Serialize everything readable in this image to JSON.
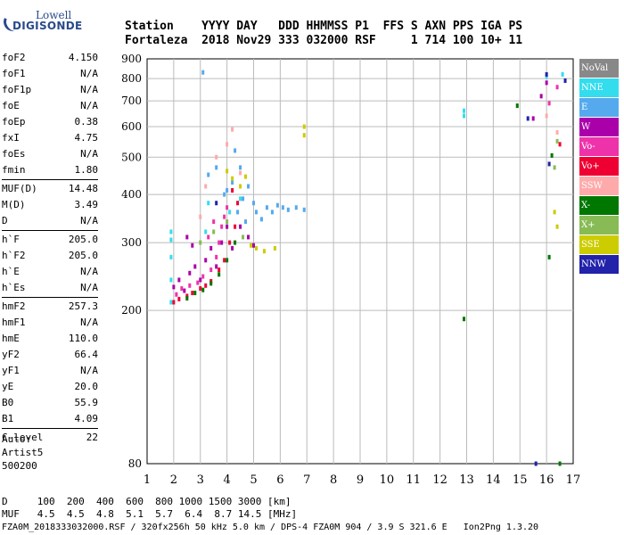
{
  "logo": {
    "line1": "Lowell",
    "line2": "DIGISONDE"
  },
  "header": {
    "line1": "Station    YYYY DAY   DDD HHMMSS P1  FFS S AXN PPS IGA PS",
    "line2": "Fortaleza  2018 Nov29 333 032000 RSF     1 714 100 10+ 11"
  },
  "params": [
    [
      {
        "k": "foF2",
        "v": "4.150"
      },
      {
        "k": "foF1",
        "v": "N/A"
      },
      {
        "k": "foF1p",
        "v": "N/A"
      },
      {
        "k": "foE",
        "v": "N/A"
      },
      {
        "k": "foEp",
        "v": "0.38"
      },
      {
        "k": "fxI",
        "v": "4.75"
      },
      {
        "k": "foEs",
        "v": "N/A"
      },
      {
        "k": "fmin",
        "v": "1.80"
      }
    ],
    [
      {
        "k": "MUF(D)",
        "v": "14.48"
      },
      {
        "k": "M(D)",
        "v": "3.49"
      },
      {
        "k": "D",
        "v": "N/A"
      }
    ],
    [
      {
        "k": "h`F",
        "v": "205.0"
      },
      {
        "k": "h`F2",
        "v": "205.0"
      },
      {
        "k": "h`E",
        "v": "N/A"
      },
      {
        "k": "h`Es",
        "v": "N/A"
      }
    ],
    [
      {
        "k": "hmF2",
        "v": "257.3"
      },
      {
        "k": "hmF1",
        "v": "N/A"
      },
      {
        "k": "hmE",
        "v": "110.0"
      },
      {
        "k": "yF2",
        "v": "66.4"
      },
      {
        "k": "yF1",
        "v": "N/A"
      },
      {
        "k": "yE",
        "v": "20.0"
      },
      {
        "k": "B0",
        "v": "55.9"
      },
      {
        "k": "B1",
        "v": "4.09"
      }
    ],
    [
      {
        "k": "C-level",
        "v": "22"
      }
    ]
  ],
  "auto_block": [
    "Auto:",
    "Artist5",
    "500200"
  ],
  "footer": {
    "d_row": "D     100  200  400  600  800 1000 1500 3000 [km]",
    "muf_row": "MUF   4.5  4.5  4.8  5.1  5.7  6.4  8.7 14.5 [MHz]",
    "file_row": "FZA0M_2018333032000.RSF / 320fx256h 50 kHz 5.0 km / DPS-4 FZA0M 904 / 3.9 S 321.6 E   Ion2Png 1.3.20"
  },
  "legend": [
    {
      "label": "NoVal",
      "color": "#888888"
    },
    {
      "label": "NNE",
      "color": "#33ddee"
    },
    {
      "label": "E",
      "color": "#55aaee"
    },
    {
      "label": "W",
      "color": "#aa00aa"
    },
    {
      "label": "Vo-",
      "color": "#ee33aa"
    },
    {
      "label": "Vo+",
      "color": "#ee0033"
    },
    {
      "label": "SSW",
      "color": "#ffaaaa"
    },
    {
      "label": "X-",
      "color": "#007700"
    },
    {
      "label": "X+",
      "color": "#88bb55"
    },
    {
      "label": "SSE",
      "color": "#cccc00"
    },
    {
      "label": "NNW",
      "color": "#2222aa"
    }
  ],
  "chart_data": {
    "type": "scatter",
    "xlim": [
      1,
      17
    ],
    "ylim": [
      80,
      900
    ],
    "y_scale": "log",
    "x_ticks": [
      "1",
      "2",
      "3",
      "4",
      "5",
      "6",
      "7",
      "8",
      "9",
      "10",
      "11",
      "12",
      "13",
      "14",
      "15",
      "16",
      "17"
    ],
    "y_ticks": [
      "80",
      "200",
      "300",
      "400",
      "500",
      "600",
      "700",
      "800",
      "900"
    ],
    "grid": true,
    "series": [
      {
        "name": "NNE",
        "color": "#33ddee",
        "points": [
          [
            1.9,
            210
          ],
          [
            1.9,
            240
          ],
          [
            1.9,
            275
          ],
          [
            1.9,
            305
          ],
          [
            1.9,
            320
          ],
          [
            3.2,
            320
          ],
          [
            3.3,
            380
          ],
          [
            4.1,
            360
          ],
          [
            4.5,
            390
          ],
          [
            12.9,
            640
          ],
          [
            12.9,
            660
          ],
          [
            16.0,
            810
          ],
          [
            16.6,
            820
          ]
        ]
      },
      {
        "name": "E",
        "color": "#55aaee",
        "points": [
          [
            3.3,
            450
          ],
          [
            3.6,
            470
          ],
          [
            4.0,
            410
          ],
          [
            4.2,
            430
          ],
          [
            4.4,
            360
          ],
          [
            4.5,
            470
          ],
          [
            4.6,
            390
          ],
          [
            4.7,
            340
          ],
          [
            4.8,
            420
          ],
          [
            5.0,
            380
          ],
          [
            5.1,
            360
          ],
          [
            5.3,
            345
          ],
          [
            5.5,
            370
          ],
          [
            5.7,
            360
          ],
          [
            5.9,
            375
          ],
          [
            6.1,
            370
          ],
          [
            6.3,
            365
          ],
          [
            6.6,
            370
          ],
          [
            6.9,
            365
          ],
          [
            3.9,
            400
          ],
          [
            4.3,
            520
          ],
          [
            3.1,
            830
          ]
        ]
      },
      {
        "name": "W",
        "color": "#aa00aa",
        "points": [
          [
            2.0,
            230
          ],
          [
            2.2,
            240
          ],
          [
            2.4,
            225
          ],
          [
            2.6,
            250
          ],
          [
            2.8,
            260
          ],
          [
            3.0,
            240
          ],
          [
            3.2,
            270
          ],
          [
            3.4,
            290
          ],
          [
            3.6,
            260
          ],
          [
            3.8,
            300
          ],
          [
            4.0,
            330
          ],
          [
            4.2,
            290
          ],
          [
            4.5,
            330
          ],
          [
            4.8,
            310
          ],
          [
            5.0,
            295
          ],
          [
            2.7,
            295
          ],
          [
            2.5,
            310
          ],
          [
            16.0,
            780
          ],
          [
            15.5,
            630
          ],
          [
            15.8,
            720
          ]
        ]
      },
      {
        "name": "Vo-",
        "color": "#ee33aa",
        "points": [
          [
            2.1,
            220
          ],
          [
            2.3,
            228
          ],
          [
            2.6,
            232
          ],
          [
            2.9,
            236
          ],
          [
            3.1,
            245
          ],
          [
            3.4,
            255
          ],
          [
            3.6,
            275
          ],
          [
            3.7,
            300
          ],
          [
            3.8,
            330
          ],
          [
            3.9,
            350
          ],
          [
            4.0,
            370
          ],
          [
            3.5,
            340
          ],
          [
            3.3,
            310
          ],
          [
            16.1,
            690
          ],
          [
            16.4,
            760
          ]
        ]
      },
      {
        "name": "Vo+",
        "color": "#ee0033",
        "points": [
          [
            2.0,
            210
          ],
          [
            2.2,
            214
          ],
          [
            2.5,
            218
          ],
          [
            2.7,
            222
          ],
          [
            3.0,
            228
          ],
          [
            3.2,
            232
          ],
          [
            3.4,
            238
          ],
          [
            3.7,
            255
          ],
          [
            3.9,
            270
          ],
          [
            4.1,
            300
          ],
          [
            4.3,
            330
          ],
          [
            4.4,
            380
          ],
          [
            4.2,
            410
          ],
          [
            16.5,
            540
          ]
        ]
      },
      {
        "name": "SSW",
        "color": "#ffaaaa",
        "points": [
          [
            3.0,
            350
          ],
          [
            3.2,
            420
          ],
          [
            3.6,
            500
          ],
          [
            4.0,
            540
          ],
          [
            4.2,
            590
          ],
          [
            4.5,
            455
          ],
          [
            16.0,
            640
          ],
          [
            16.4,
            580
          ]
        ]
      },
      {
        "name": "X-",
        "color": "#007700",
        "points": [
          [
            2.5,
            215
          ],
          [
            2.8,
            222
          ],
          [
            3.1,
            226
          ],
          [
            3.4,
            235
          ],
          [
            3.7,
            248
          ],
          [
            4.0,
            270
          ],
          [
            4.3,
            300
          ],
          [
            12.9,
            190
          ],
          [
            14.9,
            680
          ],
          [
            16.2,
            505
          ],
          [
            16.1,
            275
          ],
          [
            16.5,
            80
          ]
        ]
      },
      {
        "name": "X+",
        "color": "#88bb55",
        "points": [
          [
            3.0,
            300
          ],
          [
            3.5,
            320
          ],
          [
            4.0,
            340
          ],
          [
            4.6,
            310
          ],
          [
            16.3,
            470
          ],
          [
            16.4,
            550
          ]
        ]
      },
      {
        "name": "SSE",
        "color": "#cccc00",
        "points": [
          [
            4.0,
            460
          ],
          [
            4.2,
            440
          ],
          [
            4.5,
            420
          ],
          [
            4.7,
            445
          ],
          [
            4.9,
            295
          ],
          [
            5.1,
            290
          ],
          [
            5.4,
            285
          ],
          [
            5.8,
            290
          ],
          [
            6.9,
            570
          ],
          [
            6.9,
            600
          ],
          [
            16.3,
            360
          ],
          [
            16.4,
            330
          ]
        ]
      },
      {
        "name": "NNW",
        "color": "#2222aa",
        "points": [
          [
            3.6,
            380
          ],
          [
            15.3,
            630
          ],
          [
            16.1,
            480
          ],
          [
            16.7,
            790
          ],
          [
            16.0,
            820
          ],
          [
            15.6,
            80
          ]
        ]
      }
    ]
  }
}
